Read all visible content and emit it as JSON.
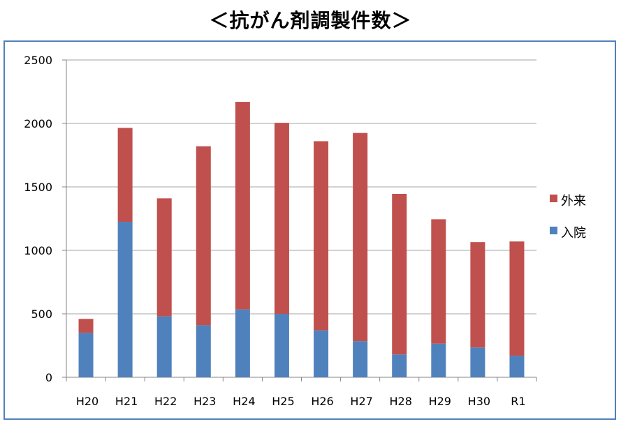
{
  "chart_data": {
    "type": "bar",
    "stacked": true,
    "title": "＜抗がん剤調製件数＞",
    "xlabel": "",
    "ylabel": "",
    "ylim": [
      0,
      2500
    ],
    "yticks": [
      0,
      500,
      1000,
      1500,
      2000,
      2500
    ],
    "grid": true,
    "legend_position": "right",
    "categories": [
      "H20",
      "H21",
      "H22",
      "H23",
      "H24",
      "H25",
      "H26",
      "H27",
      "H28",
      "H29",
      "H30",
      "R1"
    ],
    "series": [
      {
        "name": "入院",
        "color": "#4f81bd",
        "values": [
          350,
          1225,
          480,
          410,
          535,
          500,
          370,
          285,
          180,
          265,
          235,
          170
        ]
      },
      {
        "name": "外来",
        "color": "#c0504d",
        "values": [
          110,
          740,
          930,
          1410,
          1635,
          1505,
          1490,
          1640,
          1265,
          980,
          830,
          900
        ]
      }
    ],
    "legend_order": [
      "外来",
      "入院"
    ],
    "colors": {
      "frame": "#4f81bd",
      "grid": "#a6a6a6",
      "axis": "#868686"
    }
  }
}
